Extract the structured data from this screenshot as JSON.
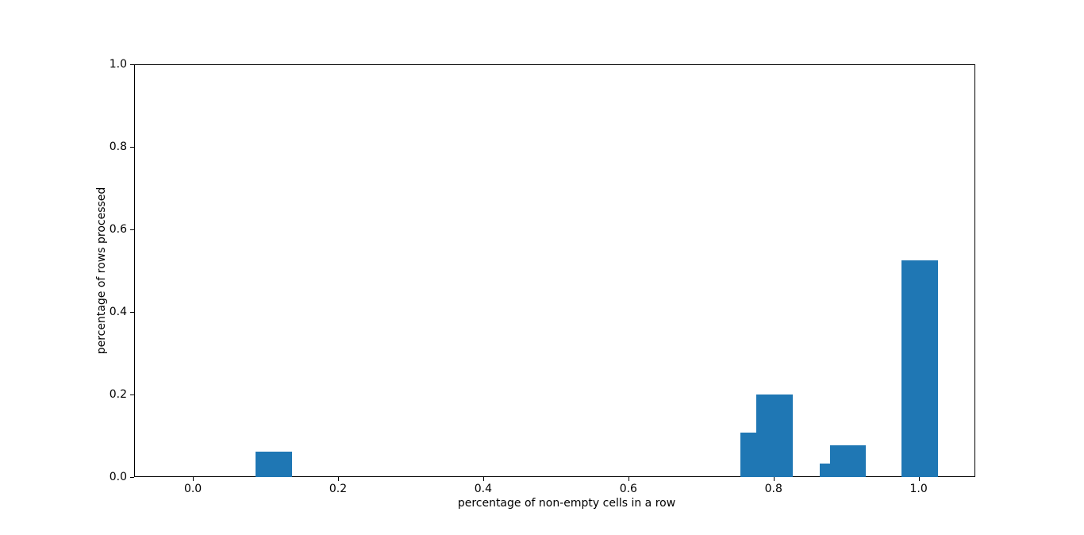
{
  "chart_data": {
    "type": "bar",
    "title": "",
    "xlabel": "percentage of non-empty cells in a row",
    "ylabel": "percentage of rows processed",
    "xlim": [
      -0.081,
      1.078
    ],
    "ylim": [
      0,
      1.0
    ],
    "xtick_values": [
      0.0,
      0.2,
      0.4,
      0.6,
      0.8,
      1.0
    ],
    "xtick_labels": [
      "0.0",
      "0.2",
      "0.4",
      "0.6",
      "0.8",
      "1.0"
    ],
    "ytick_values": [
      0.0,
      0.2,
      0.4,
      0.6,
      0.8,
      1.0
    ],
    "ytick_labels": [
      "0.0",
      "0.2",
      "0.4",
      "0.6",
      "0.8",
      "1.0"
    ],
    "grid": false,
    "legend_position": "none",
    "bar_color": "#1f77b4",
    "axis_color": "#000000",
    "background_color": "#ffffff",
    "bars": [
      {
        "x_left": 0.085,
        "x_right": 0.135,
        "height": 0.064
      },
      {
        "x_left": 0.753,
        "x_right": 0.775,
        "height": 0.11
      },
      {
        "x_left": 0.775,
        "x_right": 0.825,
        "height": 0.202
      },
      {
        "x_left": 0.863,
        "x_right": 0.877,
        "height": 0.035
      },
      {
        "x_left": 0.877,
        "x_right": 0.926,
        "height": 0.079
      },
      {
        "x_left": 0.975,
        "x_right": 1.025,
        "height": 0.526
      }
    ]
  }
}
